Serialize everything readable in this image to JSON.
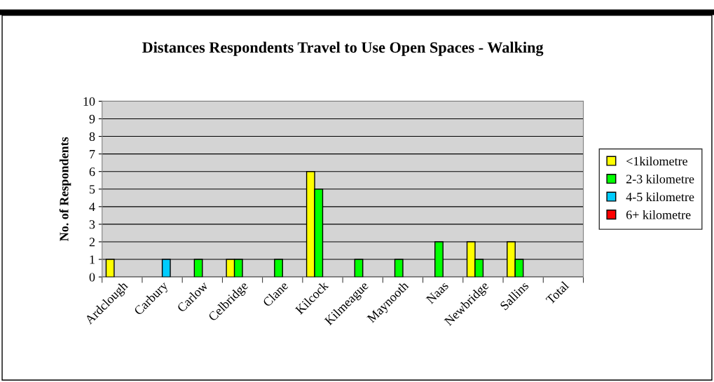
{
  "chart_data": {
    "type": "bar",
    "title": "Distances Respondents Travel to Use Open Spaces - Walking",
    "ylabel": "No. of Respondents",
    "categories": [
      "Ardclough",
      "Carbury",
      "Carlow",
      "Celbridge",
      "Clane",
      "Kilcock",
      "Kilmeague",
      "Maynooth",
      "Naas",
      "Newbridge",
      "Sallins",
      "Total"
    ],
    "series": [
      {
        "name": "<1kilometre",
        "color": "#ffff00",
        "values": [
          1,
          null,
          null,
          1,
          null,
          6,
          null,
          null,
          null,
          2,
          2,
          null
        ]
      },
      {
        "name": "2-3 kilometre",
        "color": "#00ff00",
        "values": [
          null,
          null,
          1,
          1,
          1,
          5,
          1,
          1,
          2,
          1,
          1,
          null
        ]
      },
      {
        "name": "4-5 kilometre",
        "color": "#00ccff",
        "values": [
          null,
          1,
          null,
          null,
          null,
          null,
          null,
          null,
          null,
          null,
          null,
          null
        ]
      },
      {
        "name": "6+ kilometre",
        "color": "#ff0000",
        "values": [
          null,
          null,
          null,
          null,
          null,
          null,
          null,
          null,
          null,
          null,
          null,
          null
        ]
      }
    ],
    "ylim": [
      0,
      10
    ],
    "yticks": [
      0,
      1,
      2,
      3,
      4,
      5,
      6,
      7,
      8,
      9,
      10
    ],
    "grid": "y",
    "legend": "right"
  }
}
